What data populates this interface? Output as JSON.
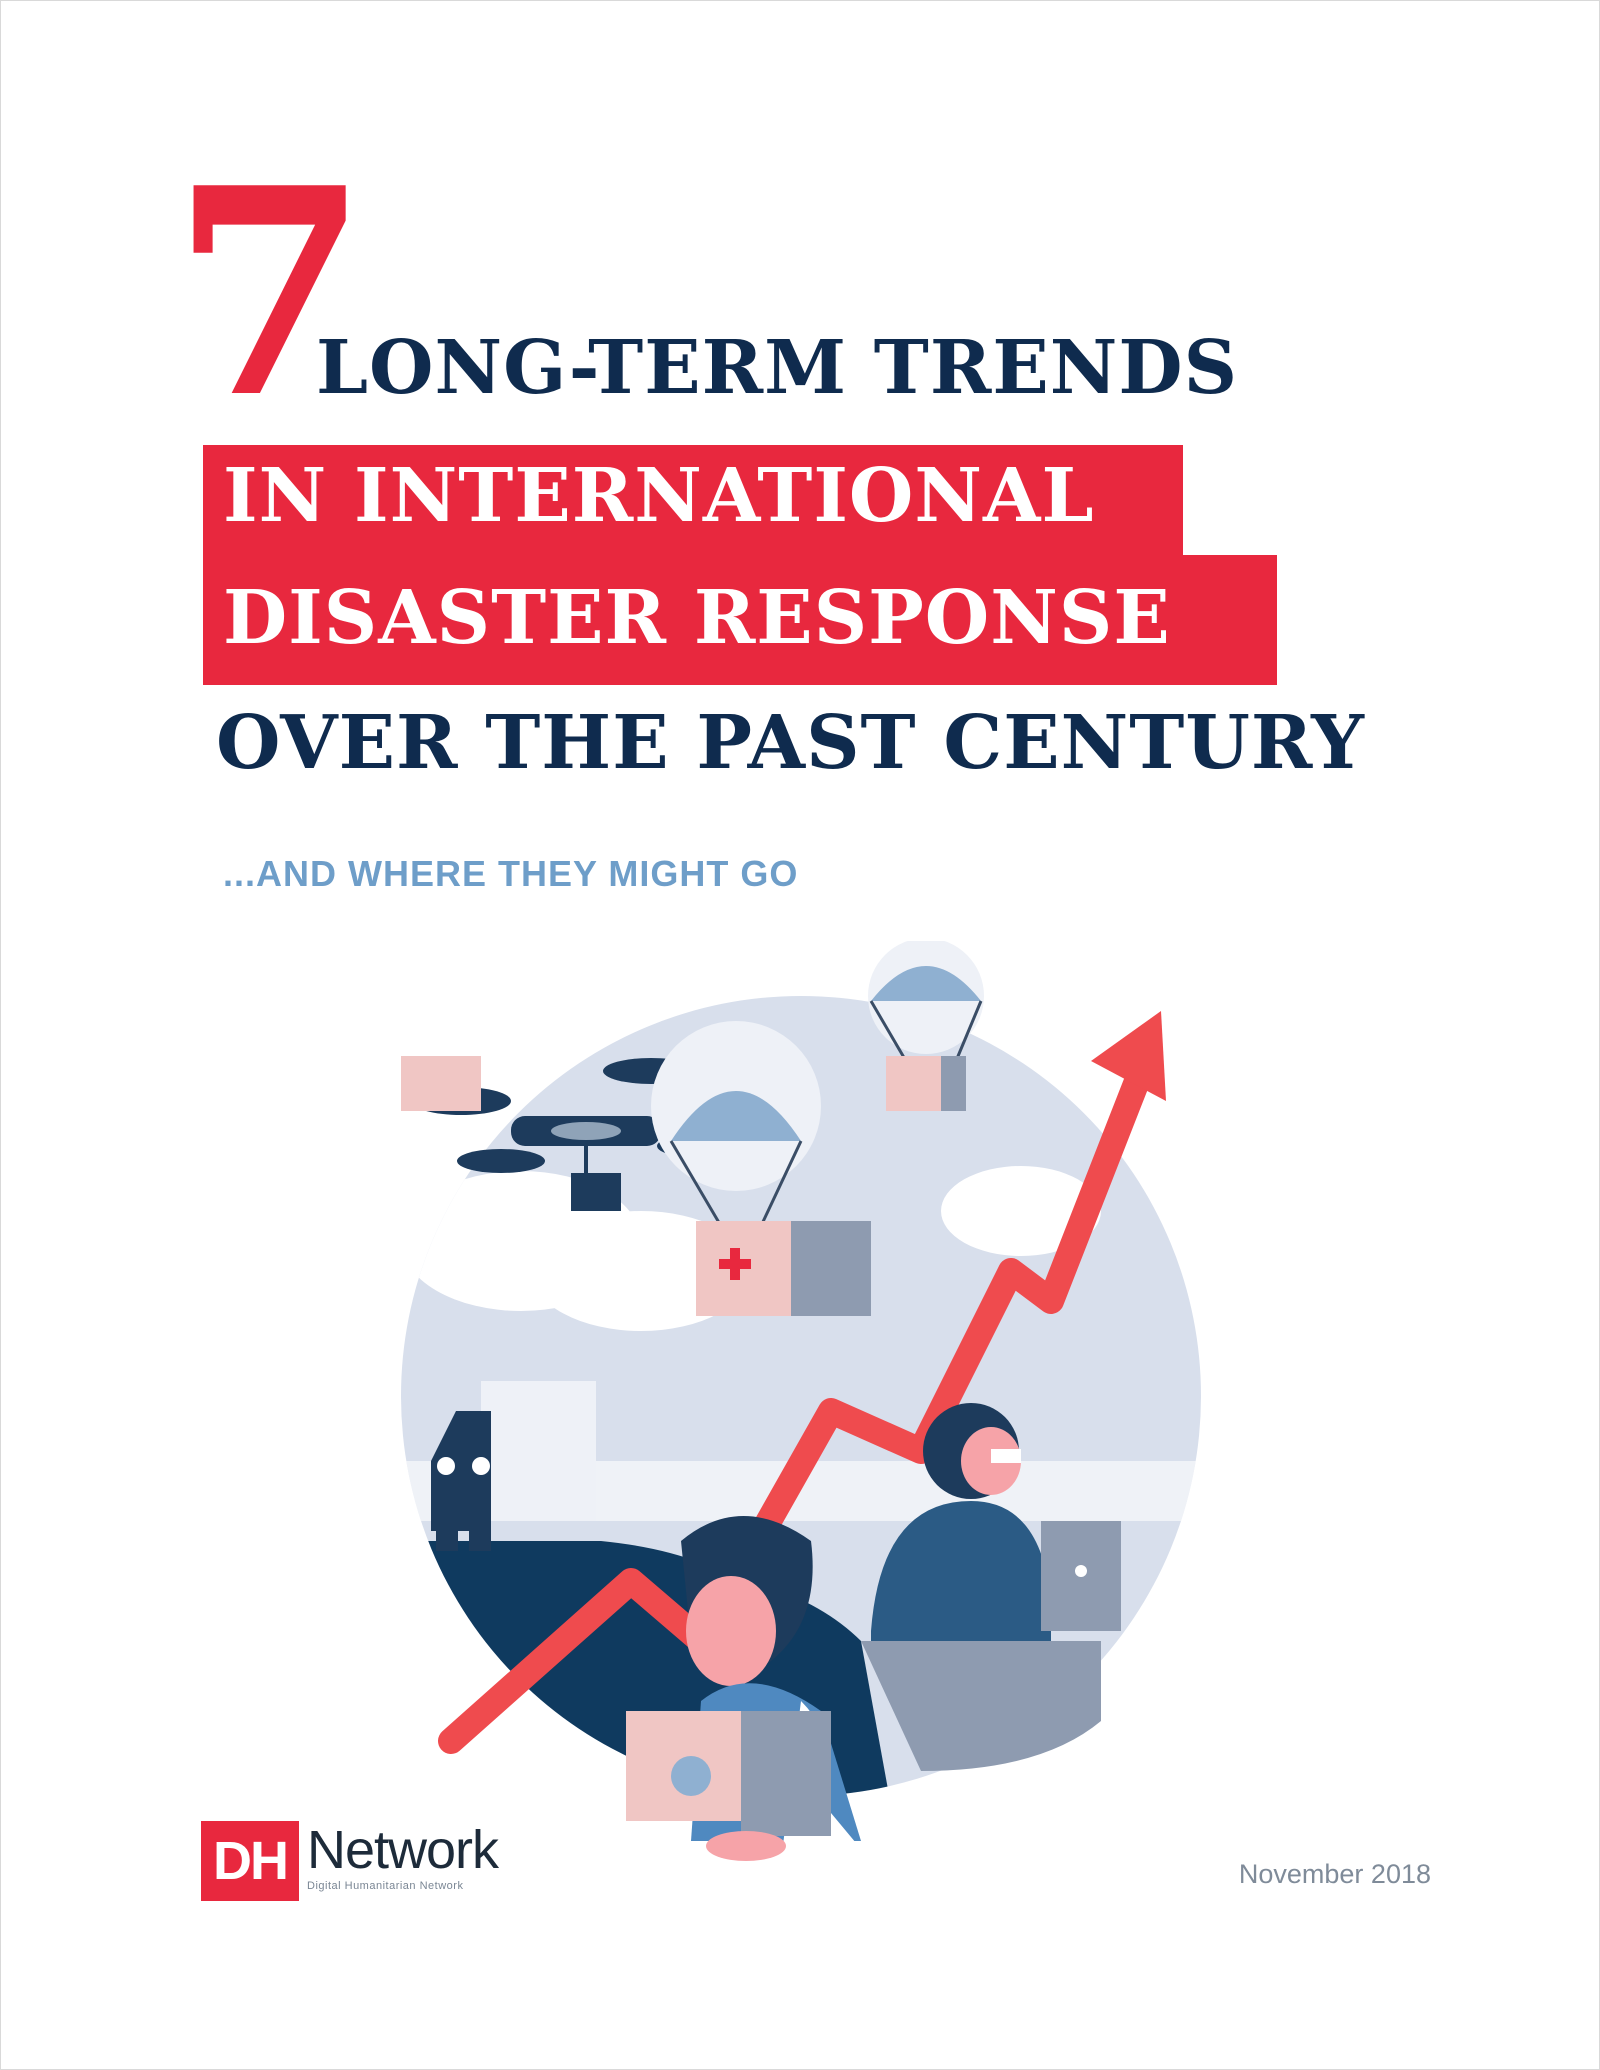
{
  "cover": {
    "number": "7",
    "title_line1": "LONG-TERM TRENDS",
    "title_line2": "IN INTERNATIONAL",
    "title_line3": "DISASTER RESPONSE",
    "title_line4": "OVER THE PAST CENTURY",
    "subtitle": "...AND WHERE THEY MIGHT GO",
    "date": "November 2018"
  },
  "logo": {
    "mark": "DH",
    "name": "Network",
    "tagline": "Digital Humanitarian Network"
  },
  "colors": {
    "accent_red": "#e8283e",
    "navy": "#0f2b4e",
    "light_blue": "#6e9ec9"
  },
  "illustration": {
    "icons": [
      "drone-icon",
      "parachute-crate-icon",
      "truck-icon",
      "rising-arrow-icon",
      "person-with-box-icon",
      "person-with-laptop-icon"
    ]
  }
}
